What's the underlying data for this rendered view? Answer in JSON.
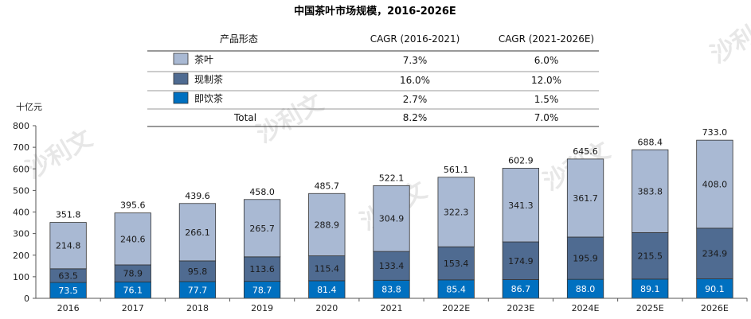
{
  "chart_data": {
    "type": "bar",
    "stacked": true,
    "title": "中国茶叶市场规模，2016-2026E",
    "unit_label": "十亿元",
    "categories": [
      "2016",
      "2017",
      "2018",
      "2019",
      "2020",
      "2021",
      "2022E",
      "2023E",
      "2024E",
      "2025E",
      "2026E"
    ],
    "series": [
      {
        "name": "即饮茶",
        "color": "#0070c0",
        "values": [
          73.5,
          76.1,
          77.7,
          78.7,
          81.4,
          83.8,
          85.4,
          86.7,
          88.0,
          89.1,
          90.1
        ]
      },
      {
        "name": "现制茶",
        "color": "#4f6b91",
        "values": [
          63.5,
          78.9,
          95.8,
          113.6,
          115.4,
          133.4,
          153.4,
          174.9,
          195.9,
          215.5,
          234.9
        ]
      },
      {
        "name": "茶叶",
        "color": "#a9b9d3",
        "values": [
          214.8,
          240.6,
          266.1,
          265.7,
          288.9,
          304.9,
          322.3,
          341.3,
          361.7,
          383.8,
          408.0
        ]
      }
    ],
    "totals": [
      351.8,
      395.6,
      439.6,
      458.0,
      485.7,
      522.1,
      561.1,
      602.9,
      645.6,
      688.4,
      733.0
    ],
    "ylim": [
      0,
      800
    ],
    "yticks": [
      0,
      100,
      200,
      300,
      400,
      500,
      600,
      700,
      800
    ],
    "grid": false
  },
  "cagr_table": {
    "headers": [
      "产品形态",
      "CAGR (2016-2021)",
      "CAGR (2021-2026E)"
    ],
    "rows": [
      {
        "name": "茶叶",
        "color": "#a9b9d3",
        "c1": "7.3%",
        "c2": "6.0%"
      },
      {
        "name": "现制茶",
        "color": "#4f6b91",
        "c1": "16.0%",
        "c2": "12.0%"
      },
      {
        "name": "即饮茶",
        "color": "#0070c0",
        "c1": "2.7%",
        "c2": "1.5%"
      },
      {
        "name": "Total",
        "color": "",
        "c1": "8.2%",
        "c2": "7.0%"
      }
    ]
  },
  "watermark": "沙利文"
}
